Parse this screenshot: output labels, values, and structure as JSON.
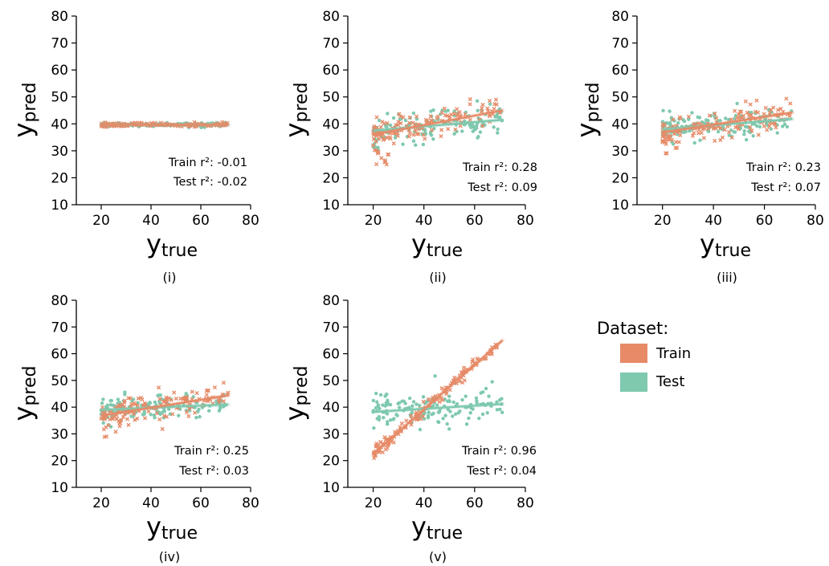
{
  "colors": {
    "train": "#E68A67",
    "test": "#7FC9AF"
  },
  "legend": {
    "title": "Dataset:",
    "items": [
      {
        "label": "Train",
        "series": "train"
      },
      {
        "label": "Test",
        "series": "test"
      }
    ]
  },
  "chart_data": [
    {
      "type": "scatter",
      "caption": "(i)",
      "xlabel_base": "y",
      "xlabel_sub": "true",
      "ylabel_base": "y",
      "ylabel_sub": "pred",
      "xlim": [
        10,
        80
      ],
      "ylim": [
        10,
        80
      ],
      "xticks": [
        20,
        40,
        60,
        80
      ],
      "yticks": [
        10,
        20,
        30,
        40,
        50,
        60,
        70,
        80
      ],
      "grid": false,
      "train_r2": "Train r²: -0.01",
      "test_r2": "Test r²: -0.02",
      "series": [
        {
          "name": "Train",
          "marker": "x",
          "fit": {
            "x": [
              20,
              71
            ],
            "y": [
              39.7,
              39.6
            ]
          },
          "trend": {
            "slope": 0,
            "intercept": 39.7,
            "jitter": 0.35,
            "lowtail": false
          }
        },
        {
          "name": "Test",
          "marker": "o",
          "fit": {
            "x": [
              20,
              71
            ],
            "y": [
              39.7,
              39.6
            ]
          },
          "trend": {
            "slope": 0,
            "intercept": 39.7,
            "jitter": 0.35,
            "lowtail": false
          }
        }
      ]
    },
    {
      "type": "scatter",
      "caption": "(ii)",
      "xlabel_base": "y",
      "xlabel_sub": "true",
      "ylabel_base": "y",
      "ylabel_sub": "pred",
      "xlim": [
        10,
        80
      ],
      "ylim": [
        10,
        80
      ],
      "xticks": [
        20,
        40,
        60,
        80
      ],
      "yticks": [
        10,
        20,
        30,
        40,
        50,
        60,
        70,
        80
      ],
      "grid": false,
      "train_r2": "Train r²: 0.28",
      "test_r2": "Test r²: 0.09",
      "series": [
        {
          "name": "Train",
          "marker": "x",
          "fit": {
            "x": [
              20,
              71
            ],
            "y": [
              36,
              45
            ]
          },
          "trend": {
            "slope": 0.18,
            "intercept": 32.4,
            "jitter": 2.6,
            "lowtail": true
          }
        },
        {
          "name": "Test",
          "marker": "o",
          "fit": {
            "x": [
              20,
              71
            ],
            "y": [
              37.5,
              41.5
            ]
          },
          "trend": {
            "slope": 0.08,
            "intercept": 35.9,
            "jitter": 2.8,
            "lowtail": true
          }
        }
      ]
    },
    {
      "type": "scatter",
      "caption": "(iii)",
      "xlabel_base": "y",
      "xlabel_sub": "true",
      "ylabel_base": "y",
      "ylabel_sub": "pred",
      "xlim": [
        10,
        80
      ],
      "ylim": [
        10,
        80
      ],
      "xticks": [
        20,
        40,
        60,
        80
      ],
      "yticks": [
        10,
        20,
        30,
        40,
        50,
        60,
        70,
        80
      ],
      "grid": false,
      "train_r2": "Train r²: 0.23",
      "test_r2": "Test r²: 0.07",
      "series": [
        {
          "name": "Train",
          "marker": "x",
          "fit": {
            "x": [
              20,
              71
            ],
            "y": [
              36.8,
              44.2
            ]
          },
          "trend": {
            "slope": 0.145,
            "intercept": 33.9,
            "jitter": 2.5,
            "lowtail": true
          }
        },
        {
          "name": "Test",
          "marker": "o",
          "fit": {
            "x": [
              20,
              71
            ],
            "y": [
              38,
              41.8
            ]
          },
          "trend": {
            "slope": 0.075,
            "intercept": 36.5,
            "jitter": 2.6,
            "lowtail": false
          }
        }
      ]
    },
    {
      "type": "scatter",
      "caption": "(iv)",
      "xlabel_base": "y",
      "xlabel_sub": "true",
      "ylabel_base": "y",
      "ylabel_sub": "pred",
      "xlim": [
        10,
        80
      ],
      "ylim": [
        10,
        80
      ],
      "xticks": [
        20,
        40,
        60,
        80
      ],
      "yticks": [
        10,
        20,
        30,
        40,
        50,
        60,
        70,
        80
      ],
      "grid": false,
      "train_r2": "Train r²: 0.25",
      "test_r2": "Test r²: 0.03",
      "series": [
        {
          "name": "Train",
          "marker": "x",
          "fit": {
            "x": [
              20,
              71
            ],
            "y": [
              36.8,
              44.4
            ]
          },
          "trend": {
            "slope": 0.15,
            "intercept": 33.8,
            "jitter": 2.4,
            "lowtail": true
          }
        },
        {
          "name": "Test",
          "marker": "o",
          "fit": {
            "x": [
              20,
              71
            ],
            "y": [
              39,
              41
            ]
          },
          "trend": {
            "slope": 0.04,
            "intercept": 38.2,
            "jitter": 2.2,
            "lowtail": false
          }
        }
      ]
    },
    {
      "type": "scatter",
      "caption": "(v)",
      "xlabel_base": "y",
      "xlabel_sub": "true",
      "ylabel_base": "y",
      "ylabel_sub": "pred",
      "xlim": [
        10,
        80
      ],
      "ylim": [
        10,
        80
      ],
      "xticks": [
        20,
        40,
        60,
        80
      ],
      "yticks": [
        10,
        20,
        30,
        40,
        50,
        60,
        70,
        80
      ],
      "grid": false,
      "train_r2": "Train r²: 0.96",
      "test_r2": "Test r²: 0.04",
      "series": [
        {
          "name": "Train",
          "marker": "x",
          "fit": {
            "x": [
              20,
              71
            ],
            "y": [
              22.5,
              65
            ]
          },
          "trend": {
            "slope": 0.833,
            "intercept": 5.8,
            "jitter": 1.1,
            "lowtail": false
          }
        },
        {
          "name": "Test",
          "marker": "o",
          "fit": {
            "x": [
              20,
              71
            ],
            "y": [
              38.2,
              41.2
            ]
          },
          "trend": {
            "slope": 0.06,
            "intercept": 37,
            "jitter": 3.2,
            "lowtail": false
          }
        }
      ]
    }
  ]
}
